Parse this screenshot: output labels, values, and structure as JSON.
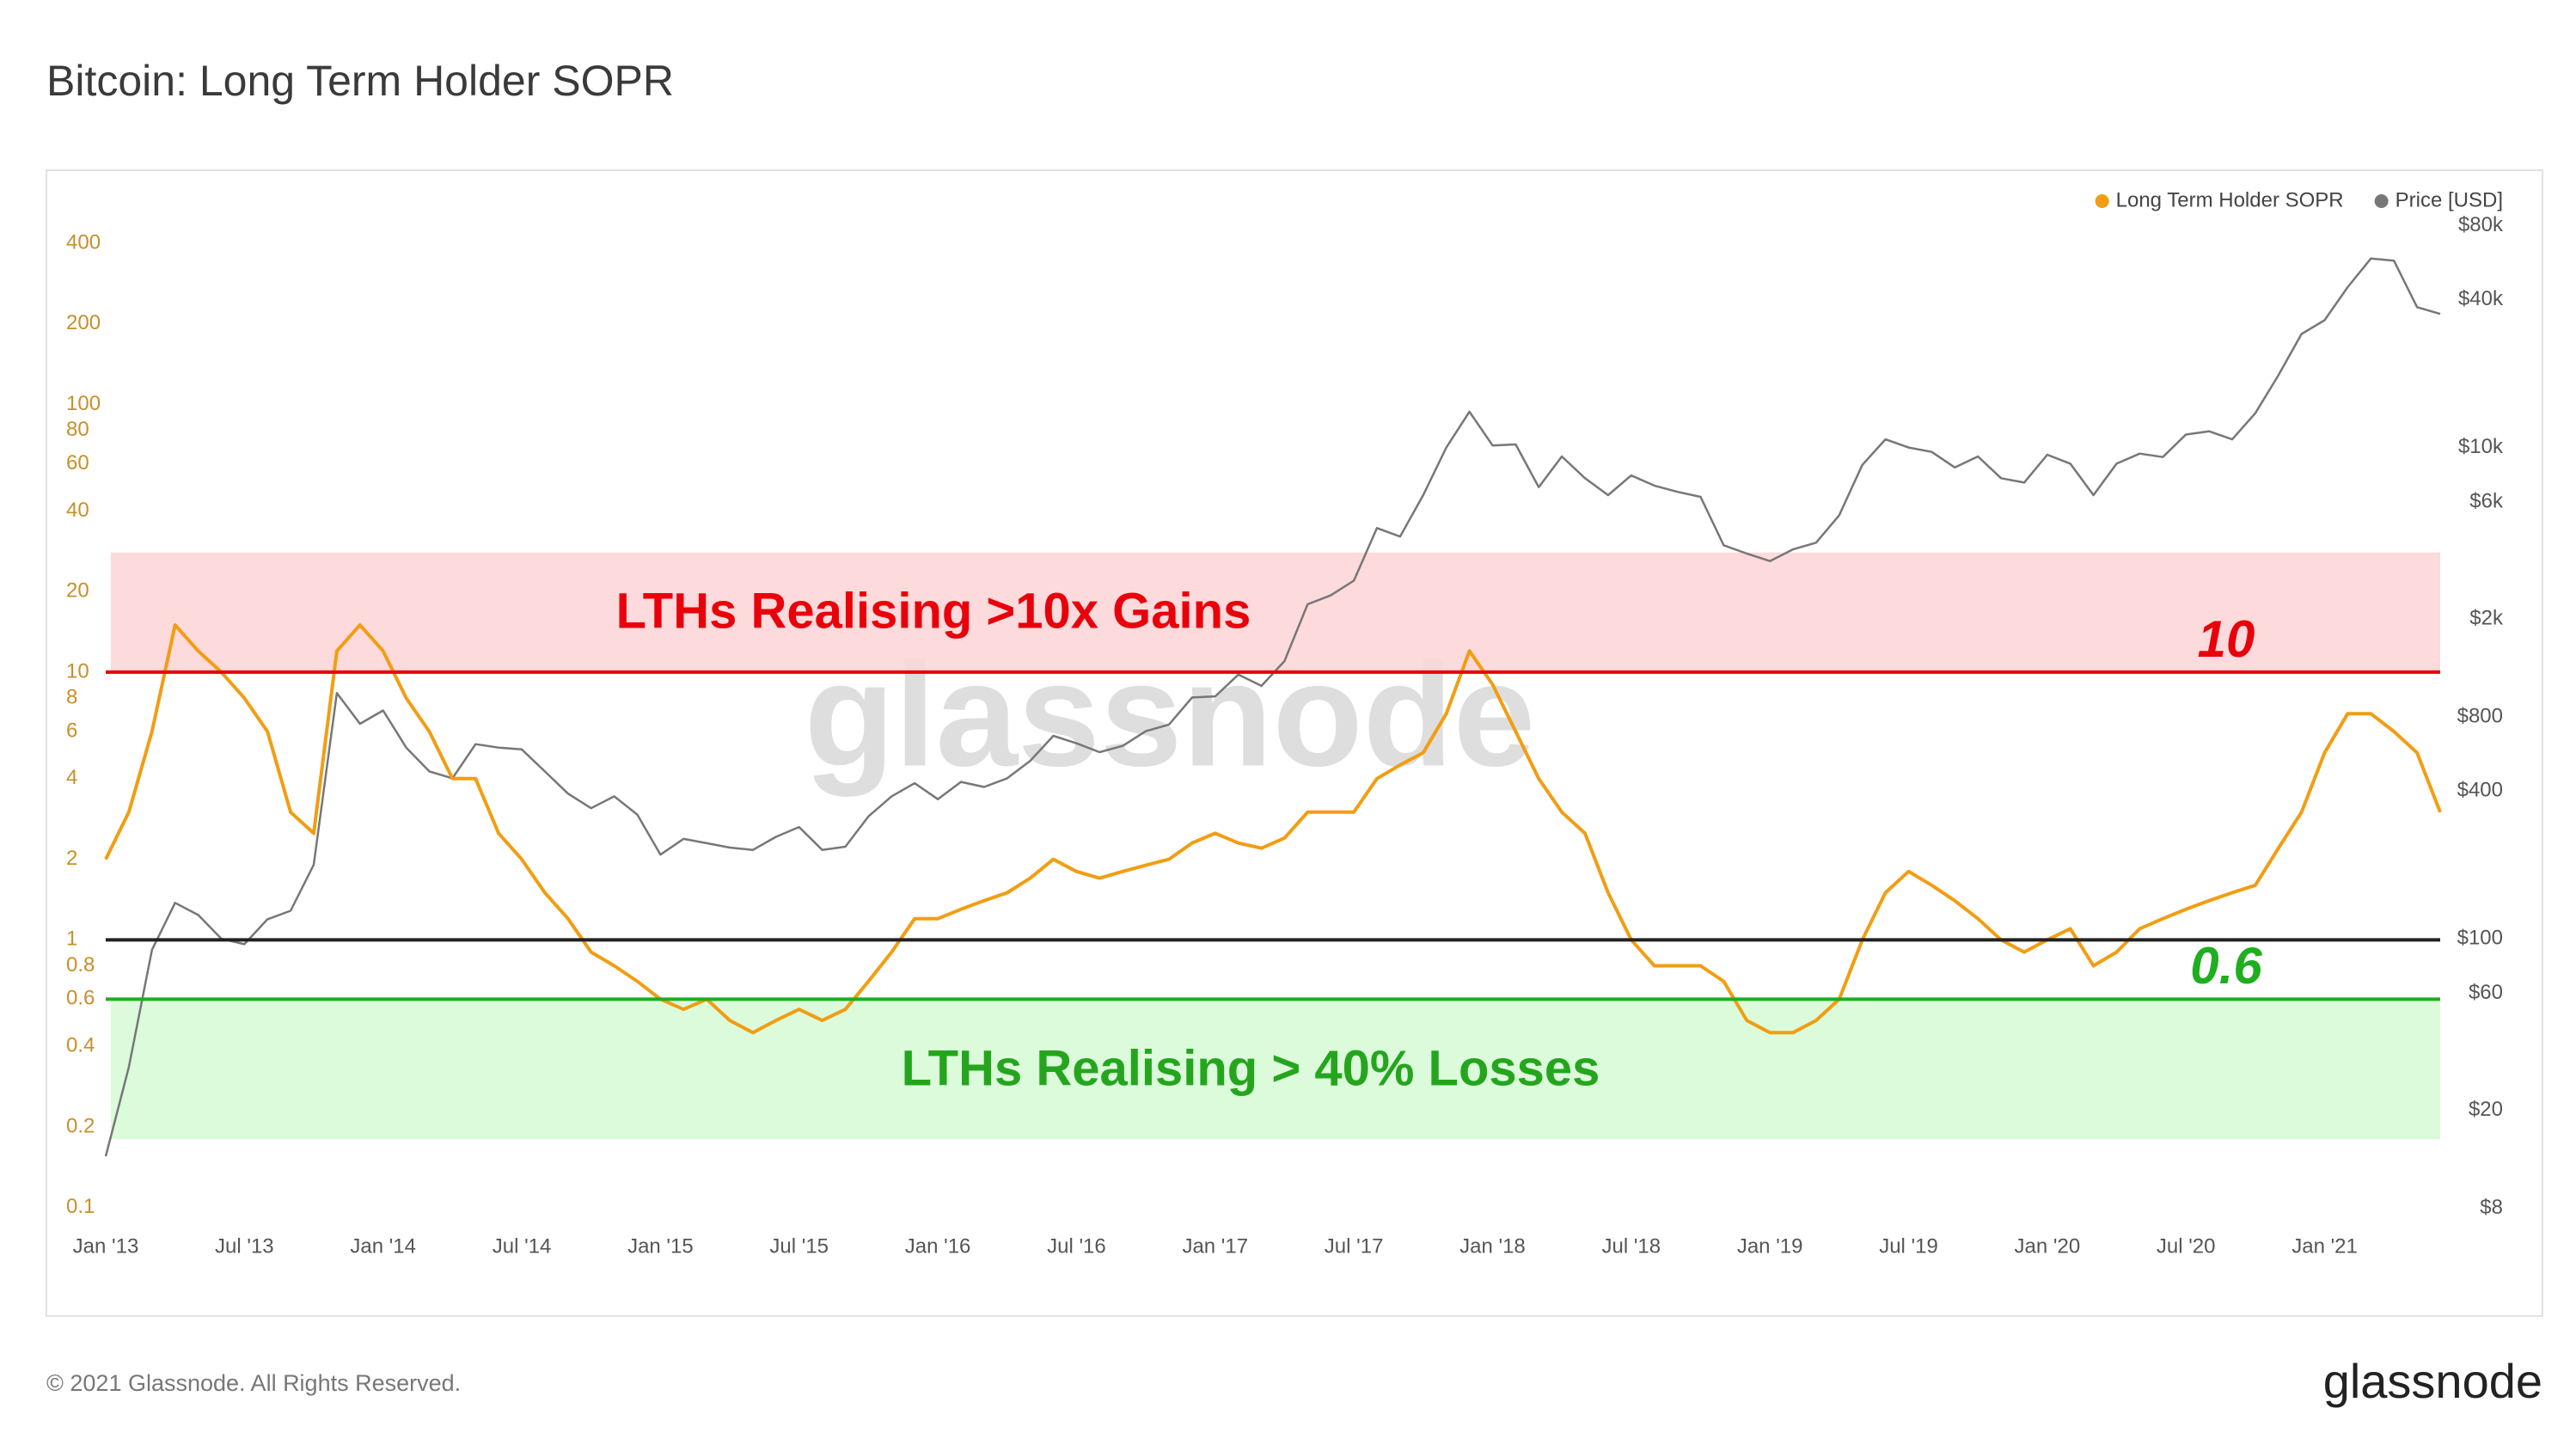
{
  "chart_data": {
    "type": "line",
    "title": "Bitcoin: Long Term Holder SOPR",
    "watermark": "glassnode",
    "x": [
      "2013-01",
      "2013-02",
      "2013-03",
      "2013-04",
      "2013-05",
      "2013-06",
      "2013-07",
      "2013-08",
      "2013-09",
      "2013-10",
      "2013-11",
      "2013-12",
      "2014-01",
      "2014-02",
      "2014-03",
      "2014-04",
      "2014-05",
      "2014-06",
      "2014-07",
      "2014-08",
      "2014-09",
      "2014-10",
      "2014-11",
      "2014-12",
      "2015-01",
      "2015-02",
      "2015-03",
      "2015-04",
      "2015-05",
      "2015-06",
      "2015-07",
      "2015-08",
      "2015-09",
      "2015-10",
      "2015-11",
      "2015-12",
      "2016-01",
      "2016-02",
      "2016-03",
      "2016-04",
      "2016-05",
      "2016-06",
      "2016-07",
      "2016-08",
      "2016-09",
      "2016-10",
      "2016-11",
      "2016-12",
      "2017-01",
      "2017-02",
      "2017-03",
      "2017-04",
      "2017-05",
      "2017-06",
      "2017-07",
      "2017-08",
      "2017-09",
      "2017-10",
      "2017-11",
      "2017-12",
      "2018-01",
      "2018-02",
      "2018-03",
      "2018-04",
      "2018-05",
      "2018-06",
      "2018-07",
      "2018-08",
      "2018-09",
      "2018-10",
      "2018-11",
      "2018-12",
      "2019-01",
      "2019-02",
      "2019-03",
      "2019-04",
      "2019-05",
      "2019-06",
      "2019-07",
      "2019-08",
      "2019-09",
      "2019-10",
      "2019-11",
      "2019-12",
      "2020-01",
      "2020-02",
      "2020-03",
      "2020-04",
      "2020-05",
      "2020-06",
      "2020-07",
      "2020-08",
      "2020-09",
      "2020-10",
      "2020-11",
      "2020-12",
      "2021-01",
      "2021-02",
      "2021-03",
      "2021-04",
      "2021-05",
      "2021-06"
    ],
    "series": [
      {
        "name": "Long Term Holder SOPR",
        "color": "#f29d12",
        "axis": "y",
        "values": [
          2,
          3,
          6,
          15,
          12,
          10,
          8,
          6,
          3,
          2.5,
          12,
          15,
          12,
          8,
          6,
          4,
          4,
          2.5,
          2,
          1.5,
          1.2,
          0.9,
          0.8,
          0.7,
          0.6,
          0.55,
          0.6,
          0.5,
          0.45,
          0.5,
          0.55,
          0.5,
          0.55,
          0.7,
          0.9,
          1.2,
          1.2,
          1.3,
          1.4,
          1.5,
          1.7,
          2,
          1.8,
          1.7,
          1.8,
          1.9,
          2,
          2.3,
          2.5,
          2.3,
          2.2,
          2.4,
          3,
          3,
          3,
          4,
          4.5,
          5,
          7,
          12,
          9,
          6,
          4,
          3,
          2.5,
          1.5,
          1,
          0.8,
          0.8,
          0.8,
          0.7,
          0.5,
          0.45,
          0.45,
          0.5,
          0.6,
          1,
          1.5,
          1.8,
          1.6,
          1.4,
          1.2,
          1,
          0.9,
          1,
          1.1,
          0.8,
          0.9,
          1.1,
          1.2,
          1.3,
          1.4,
          1.5,
          1.6,
          2.2,
          3,
          5,
          7,
          7,
          6,
          5,
          3
        ]
      },
      {
        "name": "Price [USD]",
        "color": "#777777",
        "axis": "y2",
        "values": [
          13,
          30,
          90,
          140,
          125,
          100,
          95,
          120,
          130,
          200,
          1000,
          750,
          850,
          600,
          480,
          450,
          620,
          600,
          590,
          480,
          390,
          340,
          380,
          320,
          220,
          255,
          245,
          235,
          230,
          260,
          285,
          230,
          237,
          315,
          380,
          430,
          370,
          435,
          415,
          450,
          530,
          670,
          625,
          575,
          610,
          700,
          745,
          960,
          970,
          1190,
          1070,
          1350,
          2300,
          2500,
          2870,
          4700,
          4340,
          6400,
          10000,
          14000,
          10200,
          10300,
          6900,
          9200,
          7500,
          6400,
          7700,
          7000,
          6600,
          6300,
          4000,
          3700,
          3450,
          3850,
          4100,
          5300,
          8500,
          10800,
          10000,
          9600,
          8300,
          9200,
          7500,
          7200,
          9350,
          8600,
          6400,
          8600,
          9450,
          9150,
          11300,
          11650,
          10800,
          13800,
          19700,
          29000,
          33000,
          45000,
          58800,
          57700,
          37300,
          35000
        ]
      }
    ],
    "xlim": [
      "2013-01",
      "2021-06"
    ],
    "xticks": [
      {
        "value": "2013-01",
        "label": "Jan '13"
      },
      {
        "value": "2013-07",
        "label": "Jul '13"
      },
      {
        "value": "2014-01",
        "label": "Jan '14"
      },
      {
        "value": "2014-07",
        "label": "Jul '14"
      },
      {
        "value": "2015-01",
        "label": "Jan '15"
      },
      {
        "value": "2015-07",
        "label": "Jul '15"
      },
      {
        "value": "2016-01",
        "label": "Jan '16"
      },
      {
        "value": "2016-07",
        "label": "Jul '16"
      },
      {
        "value": "2017-01",
        "label": "Jan '17"
      },
      {
        "value": "2017-07",
        "label": "Jul '17"
      },
      {
        "value": "2018-01",
        "label": "Jan '18"
      },
      {
        "value": "2018-07",
        "label": "Jul '18"
      },
      {
        "value": "2019-01",
        "label": "Jan '19"
      },
      {
        "value": "2019-07",
        "label": "Jul '19"
      },
      {
        "value": "2020-01",
        "label": "Jan '20"
      },
      {
        "value": "2020-07",
        "label": "Jul '20"
      },
      {
        "value": "2021-01",
        "label": "Jan '21"
      }
    ],
    "ylim": [
      0.088,
      550
    ],
    "yticks": [
      0.1,
      0.2,
      0.4,
      0.6,
      0.8,
      1,
      2,
      4,
      6,
      8,
      10,
      20,
      40,
      60,
      80,
      100,
      200,
      400
    ],
    "ylog": true,
    "y2lim": [
      7,
      96000
    ],
    "y2ticks": [
      {
        "value": 8,
        "label": "$8"
      },
      {
        "value": 20,
        "label": "$20"
      },
      {
        "value": 60,
        "label": "$60"
      },
      {
        "value": 100,
        "label": "$100"
      },
      {
        "value": 400,
        "label": "$400"
      },
      {
        "value": 800,
        "label": "$800"
      },
      {
        "value": 2000,
        "label": "$2k"
      },
      {
        "value": 6000,
        "label": "$6k"
      },
      {
        "value": 10000,
        "label": "$10k"
      },
      {
        "value": 40000,
        "label": "$40k"
      },
      {
        "value": 80000,
        "label": "$80k"
      }
    ],
    "y2log": true,
    "grid": false,
    "legend": "top-right",
    "bands": [
      {
        "from": 10,
        "to": 28,
        "color": "#fdd6d8",
        "label": "LTHs Realising >10x Gains",
        "label_color": "#e8000b"
      },
      {
        "from": 0.18,
        "to": 0.6,
        "color": "#d7fbd7",
        "label": "LTHs Realising > 40% Losses",
        "label_color": "#25a51e"
      }
    ],
    "hlines": [
      {
        "value": 10,
        "color": "#e8000b",
        "labeled": true
      },
      {
        "value": 1,
        "color": "#222222",
        "labeled": false
      },
      {
        "value": 0.6,
        "color": "#1fae1f",
        "labeled": true
      }
    ]
  },
  "footer": {
    "copyright": "© 2021 Glassnode. All Rights Reserved.",
    "brand": "glassnode"
  }
}
